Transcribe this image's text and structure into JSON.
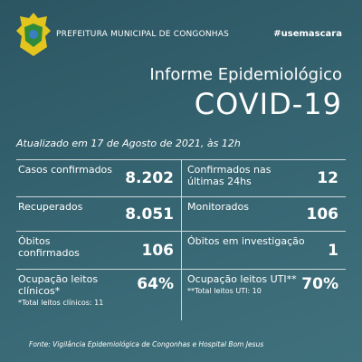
{
  "header": {
    "org": "PREFEITURA MUNICIPAL DE CONGONHAS",
    "hashtag": "#usemascara"
  },
  "title": {
    "line1": "Informe Epidemiológico",
    "line2": "COVID-19"
  },
  "updated": "Atualizado em 17 de Agosto de 2021, às 12h",
  "table": {
    "rows": [
      [
        {
          "label": "Casos confirmados",
          "value": "8.202"
        },
        {
          "label": "Confirmados nas últimas 24hs",
          "value": "12"
        }
      ],
      [
        {
          "label": "Recuperados",
          "value": "8.051"
        },
        {
          "label": "Monitorados",
          "value": "106"
        }
      ],
      [
        {
          "label": "Óbitos confirmados",
          "value": "106"
        },
        {
          "label": "Óbitos em investigação",
          "value": "1"
        }
      ],
      [
        {
          "label": "Ocupação leitos clínicos*",
          "value": "64%",
          "note": "*Total leitos clínicos: 11"
        },
        {
          "label": "Ocupação leitos UTI**",
          "value": "70%",
          "note": "**Total leitos UTI: 10"
        }
      ]
    ]
  },
  "footer": "Fonte: Vigilância Epidemiológica de Congonhas e Hospital Bom Jesus"
}
